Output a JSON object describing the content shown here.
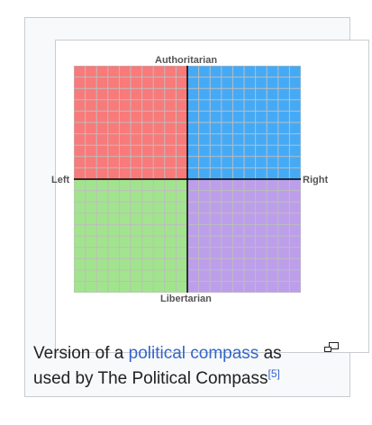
{
  "figure": {
    "axes": {
      "top": "Authoritarian",
      "bottom": "Libertarian",
      "left": "Left",
      "right": "Right"
    },
    "grid": {
      "cells_per_side": 20
    },
    "quadrants": {
      "top_left": "#f87a7a",
      "top_right": "#45aaf6",
      "bottom_left": "#a2e48e",
      "bottom_right": "#bd9eeb"
    },
    "grid_line_color": "#bdbdbd",
    "axis_color": "#000000"
  },
  "caption": {
    "text_before": "Version of a ",
    "link": "political compass",
    "text_after": " as used by The Political Compass",
    "reference": "[5]"
  },
  "icons": {
    "enlarge": "magnify-clip-icon"
  },
  "colors": {
    "link": "#3366cc",
    "text": "#202122",
    "border": "#c8ccd1"
  }
}
